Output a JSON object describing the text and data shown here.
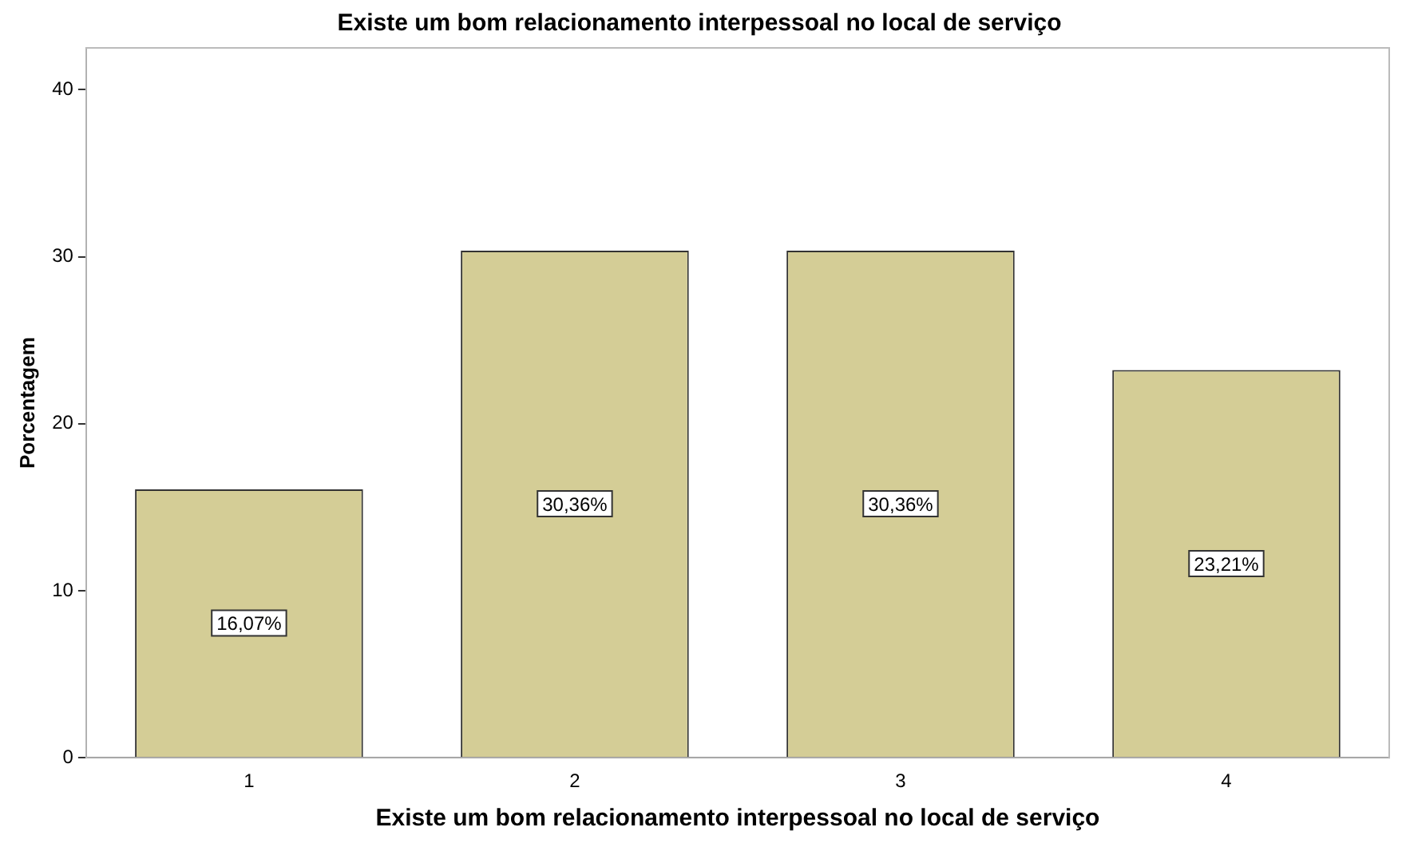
{
  "chart_data": {
    "type": "bar",
    "title": "Existe um bom relacionamento interpessoal no local de serviço",
    "xlabel": "Existe um bom relacionamento interpessoal no local de serviço",
    "ylabel": "Porcentagem",
    "categories": [
      "1",
      "2",
      "3",
      "4"
    ],
    "values": [
      16.07,
      30.36,
      30.36,
      23.21
    ],
    "value_labels": [
      "16,07%",
      "30,36%",
      "30,36%",
      "23,21%"
    ],
    "color": "#d4cd96",
    "ylim": [
      0,
      42.5
    ],
    "yticks": [
      0,
      10,
      20,
      30,
      40
    ],
    "grid": false,
    "legend": false
  }
}
